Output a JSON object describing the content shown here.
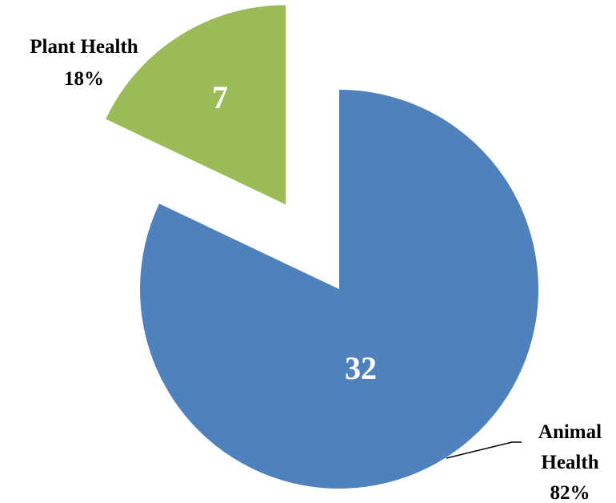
{
  "chart_data": {
    "type": "pie",
    "categories": [
      "Animal Health",
      "Plant Health"
    ],
    "values": [
      32,
      7
    ],
    "percent_labels": [
      "82%",
      "18%"
    ],
    "colors": [
      "#4f81bd",
      "#9bbb59"
    ],
    "exploded": [
      false,
      true
    ],
    "start_angle": "top",
    "direction": "clockwise"
  }
}
